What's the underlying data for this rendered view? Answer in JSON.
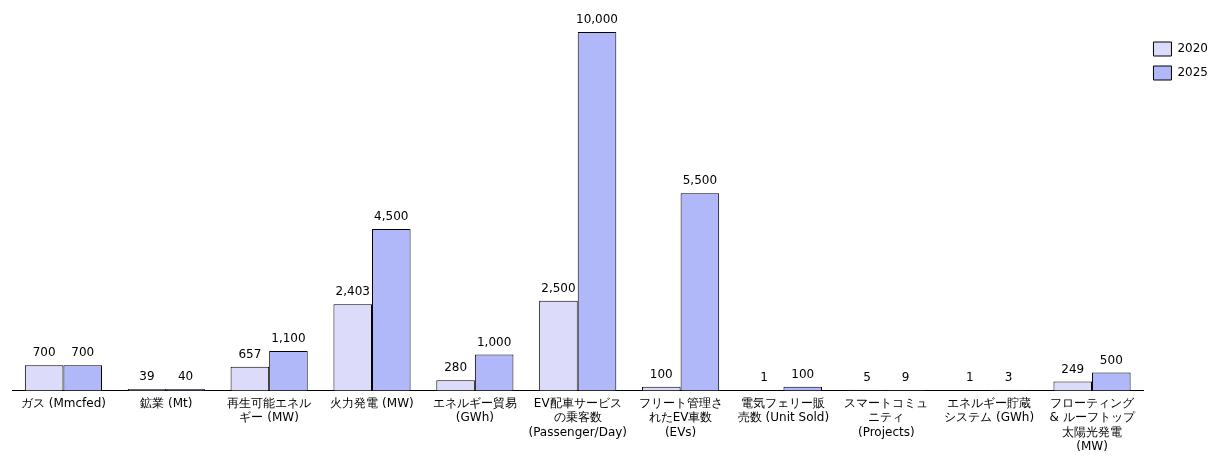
{
  "chart_data": {
    "type": "bar",
    "categories": [
      "ガス (Mmcfed)",
      "鉱業 (Mt)",
      "再生可能エネルギー (MW)",
      "火力発電 (MW)",
      "エネルギー貿易 (GWh)",
      "EV配車サービスの乗客数 (Passenger/Day)",
      "フリート管理されたEV車数 (EVs)",
      "電気フェリー販売数 (Unit Sold)",
      "スマートコミュニティ (Projects)",
      "エネルギー貯蔵システム (GWh)",
      "フローティング & ルーフトップ太陽光発電 (MW)"
    ],
    "series": [
      {
        "name": "2020",
        "color": "#dcdcfa",
        "values": [
          700,
          39,
          657,
          2403,
          280,
          2500,
          100,
          1,
          5,
          1,
          249
        ],
        "value_labels": [
          "700",
          "39",
          "657",
          "2,403",
          "280",
          "2,500",
          "100",
          "1",
          "5",
          "1",
          "249"
        ]
      },
      {
        "name": "2025",
        "color": "#b0b8fa",
        "values": [
          700,
          40,
          1100,
          4500,
          1000,
          10000,
          5500,
          100,
          9,
          3,
          500
        ],
        "value_labels": [
          "700",
          "40",
          "1,100",
          "4,500",
          "1,000",
          "10,000",
          "5,500",
          "100",
          "9",
          "3",
          "500"
        ]
      }
    ],
    "legend": "top right",
    "grid": false
  }
}
